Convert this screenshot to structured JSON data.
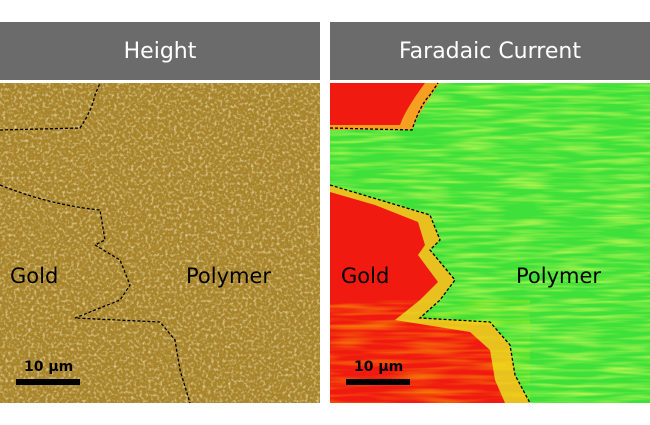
{
  "panels": [
    {
      "title": "Height",
      "labels": [
        "Gold",
        "Polymer"
      ],
      "scale_bar": "10 µm"
    },
    {
      "title": "Faradaic Current",
      "labels": [
        "Gold",
        "Polymer"
      ],
      "scale_bar": "10 µm"
    }
  ]
}
